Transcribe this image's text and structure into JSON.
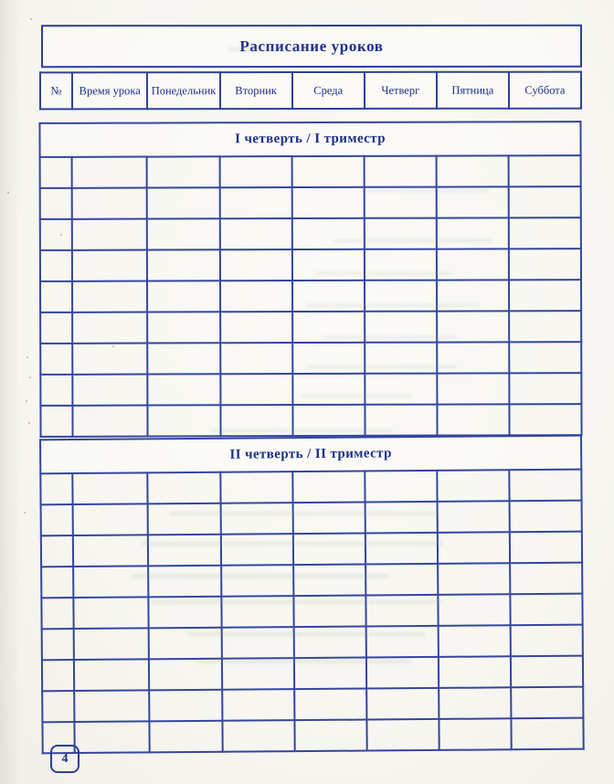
{
  "page": {
    "page_number": "4"
  },
  "title_box": {
    "label": "Расписание уроков"
  },
  "weekday_header": {
    "columns": [
      "№",
      "Время урока",
      "Понедельник",
      "Вторник",
      "Среда",
      "Четверг",
      "Пятница",
      "Суббота"
    ]
  },
  "tables": [
    {
      "title": "I четверть / I триместр",
      "rows": 9,
      "cols": 8
    },
    {
      "title": "II четверть / II триместр",
      "rows": 9,
      "cols": 8
    }
  ],
  "colors": {
    "line_blue": "#34459e",
    "text_navy": "#1d2f8a",
    "paper": "#f6f5f0"
  }
}
